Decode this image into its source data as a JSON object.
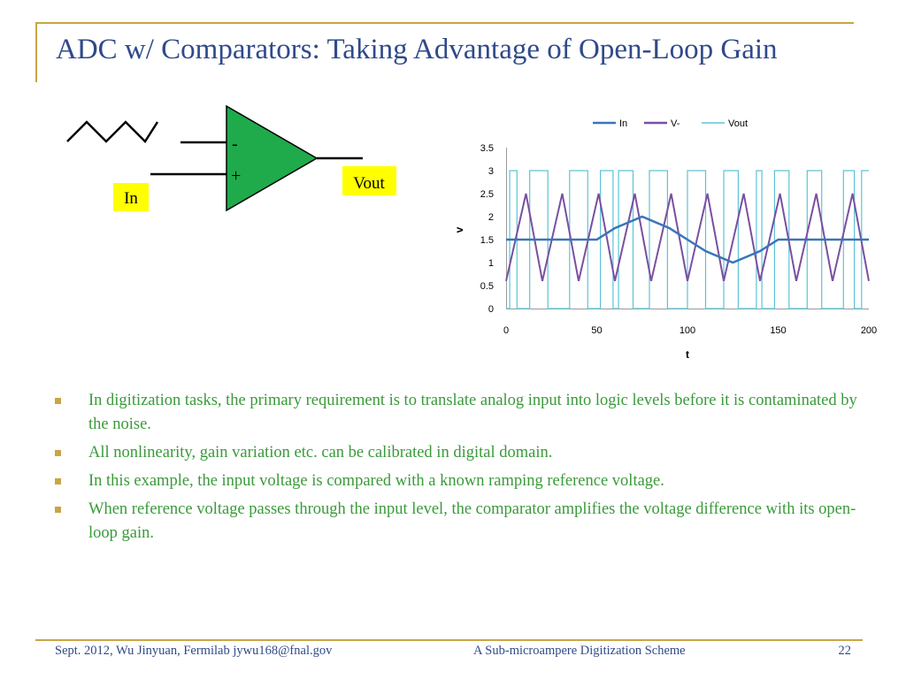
{
  "slide": {
    "title": "ADC w/ Comparators: Taking Advantage of Open-Loop Gain",
    "accent_color": "#c9a544",
    "title_color": "#2f4a8a",
    "bullet_color": "#3a9a3a"
  },
  "circuit": {
    "minus_label": "-",
    "plus_label": "+",
    "input_label": "In",
    "output_label": "Vout",
    "opamp_color": "#1faa4c",
    "label_bg_color": "#ffff00"
  },
  "chart_data": {
    "type": "line",
    "xlabel": "t",
    "ylabel": "v",
    "xlim": [
      0,
      200
    ],
    "ylim": [
      0,
      3.5
    ],
    "x_ticks": [
      "0",
      "50",
      "100",
      "150",
      "200"
    ],
    "y_ticks": [
      "0",
      "0.5",
      "1",
      "1.5",
      "2",
      "2.5",
      "3",
      "3.5"
    ],
    "grid": false,
    "legend_position": "top",
    "series": [
      {
        "name": "In",
        "color": "#3a75b8",
        "x": [
          0,
          50,
          60,
          75,
          90,
          100,
          110,
          125,
          140,
          150,
          200
        ],
        "y": [
          1.5,
          1.5,
          1.75,
          2.0,
          1.75,
          1.5,
          1.25,
          1.0,
          1.25,
          1.5,
          1.5
        ]
      },
      {
        "name": "V-",
        "color": "#7a4fa0",
        "x": [
          0,
          11,
          11,
          20,
          20,
          31,
          31,
          40,
          40,
          51,
          51,
          60,
          60,
          71,
          71,
          80,
          80,
          91,
          91,
          100,
          100,
          111,
          111,
          120,
          120,
          131,
          131,
          140,
          140,
          151,
          151,
          160,
          160,
          171,
          171,
          180,
          180,
          191,
          191,
          200
        ],
        "y": [
          0.6,
          2.5,
          2.5,
          0.6,
          0.6,
          2.5,
          2.5,
          0.6,
          0.6,
          2.5,
          2.5,
          0.6,
          0.6,
          2.5,
          2.5,
          0.6,
          0.6,
          2.5,
          2.5,
          0.6,
          0.6,
          2.5,
          2.5,
          0.6,
          0.6,
          2.5,
          2.5,
          0.6,
          0.6,
          2.5,
          2.5,
          0.6,
          0.6,
          2.5,
          2.5,
          0.6,
          0.6,
          2.5,
          2.5,
          0.6
        ]
      },
      {
        "name": "Vout",
        "color": "#5ec3d6",
        "x": [
          0,
          2,
          2,
          6,
          6,
          13,
          13,
          23,
          23,
          35,
          35,
          45,
          45,
          52,
          52,
          59,
          59,
          62,
          62,
          70,
          70,
          79,
          79,
          89,
          89,
          100,
          100,
          110,
          110,
          120,
          120,
          128,
          128,
          138,
          138,
          141,
          141,
          148,
          148,
          156,
          156,
          166,
          166,
          174,
          174,
          186,
          186,
          192,
          192,
          196,
          196,
          200
        ],
        "y": [
          0,
          0,
          3,
          3,
          0,
          0,
          3,
          3,
          0,
          0,
          3,
          3,
          0,
          0,
          3,
          3,
          0,
          0,
          3,
          3,
          0,
          0,
          3,
          3,
          0,
          0,
          3,
          3,
          0,
          0,
          3,
          3,
          0,
          0,
          3,
          3,
          0,
          0,
          3,
          3,
          0,
          0,
          3,
          3,
          0,
          0,
          3,
          3,
          0,
          0,
          3,
          3
        ]
      }
    ]
  },
  "bullets": [
    "In digitization tasks, the primary requirement is to translate analog input into logic levels before it is contaminated by the noise.",
    "All nonlinearity, gain variation etc. can be calibrated in digital domain.",
    "In this example, the input voltage is compared with a known ramping reference voltage.",
    "When reference voltage passes through the input level, the comparator amplifies the voltage difference with its open-loop gain."
  ],
  "footer": {
    "left": "Sept. 2012, Wu Jinyuan, Fermilab jywu168@fnal.gov",
    "center": "A Sub-microampere Digitization Scheme",
    "page_number": "22"
  }
}
